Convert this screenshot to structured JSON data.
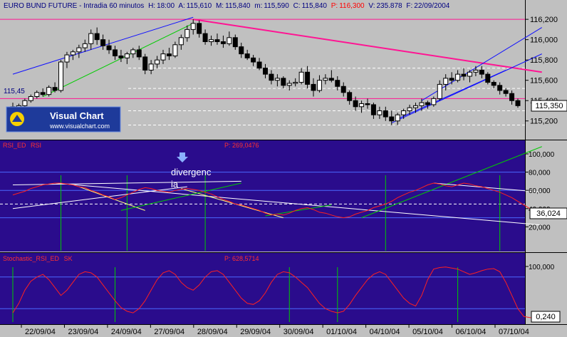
{
  "header": {
    "title": "EURO BUND FUTURE - Intradia 60 minutos",
    "h_label": "H:",
    "h_value": "18:00",
    "a_label": "A:",
    "a_value": "115,610",
    "m_label": "M:",
    "m_value": "115,840",
    "m2_label": "m:",
    "m2_value": "115,590",
    "c_label": "C:",
    "c_value": "115,840",
    "p_label": "P:",
    "p_value": "116,300",
    "v_label": "V:",
    "v_value": "235.878",
    "f_label": "F:",
    "f_value": "22/09/2004"
  },
  "logo": {
    "brand": "Visual Chart",
    "url": "www.visualchart.com"
  },
  "annotations": {
    "divergence_line1": "divergenc",
    "divergence_line2": "ia"
  },
  "colors": {
    "price_bg": "#c0c0c0",
    "indicator_bg": "#2a0c8c",
    "magenta": "#ff1493",
    "trend_blue": "#1010ff",
    "green": "#00cc00",
    "rsi_red": "#ff2020"
  },
  "chart_data": [
    {
      "type": "candlestick",
      "title": "EURO BUND FUTURE - Intradia 60 minutos",
      "ylim": [
        115.1,
        116.25
      ],
      "yticks": [
        "116,200",
        "116,000",
        "115,800",
        "115,600",
        "115,400",
        "115,200"
      ],
      "current_value_label": "115,350",
      "left_label": "115,45",
      "horizontal_levels": [
        116.2,
        115.42
      ],
      "ohlc": [
        [
          115.34,
          115.38,
          115.3,
          115.32
        ],
        [
          115.32,
          115.37,
          115.28,
          115.35
        ],
        [
          115.35,
          115.42,
          115.33,
          115.4
        ],
        [
          115.4,
          115.46,
          115.38,
          115.44
        ],
        [
          115.44,
          115.5,
          115.42,
          115.48
        ],
        [
          115.48,
          115.52,
          115.44,
          115.46
        ],
        [
          115.46,
          115.55,
          115.44,
          115.53
        ],
        [
          115.53,
          115.58,
          115.48,
          115.5
        ],
        [
          115.5,
          115.8,
          115.48,
          115.78
        ],
        [
          115.78,
          115.88,
          115.72,
          115.85
        ],
        [
          115.85,
          115.9,
          115.8,
          115.88
        ],
        [
          115.88,
          115.95,
          115.82,
          115.92
        ],
        [
          115.92,
          116.0,
          115.88,
          115.96
        ],
        [
          115.96,
          116.1,
          115.9,
          116.06
        ],
        [
          116.06,
          116.12,
          115.95,
          116.0
        ],
        [
          116.0,
          116.05,
          115.9,
          115.94
        ],
        [
          115.94,
          116.0,
          115.86,
          115.9
        ],
        [
          115.9,
          115.94,
          115.8,
          115.84
        ],
        [
          115.84,
          115.9,
          115.78,
          115.82
        ],
        [
          115.82,
          115.88,
          115.76,
          115.86
        ],
        [
          115.86,
          115.92,
          115.82,
          115.9
        ],
        [
          115.9,
          115.94,
          115.8,
          115.83
        ],
        [
          115.83,
          115.86,
          115.66,
          115.7
        ],
        [
          115.7,
          115.8,
          115.66,
          115.76
        ],
        [
          115.76,
          115.84,
          115.72,
          115.8
        ],
        [
          115.8,
          115.9,
          115.76,
          115.86
        ],
        [
          115.86,
          115.92,
          115.8,
          115.84
        ],
        [
          115.84,
          115.98,
          115.82,
          115.95
        ],
        [
          115.95,
          116.05,
          115.9,
          116.02
        ],
        [
          116.02,
          116.14,
          115.98,
          116.1
        ],
        [
          116.1,
          116.2,
          116.05,
          116.16
        ],
        [
          116.16,
          116.19,
          116.02,
          116.06
        ],
        [
          116.06,
          116.1,
          115.95,
          115.98
        ],
        [
          115.98,
          116.04,
          115.94,
          116.0
        ],
        [
          116.0,
          116.06,
          115.95,
          115.98
        ],
        [
          115.98,
          116.04,
          115.92,
          115.96
        ],
        [
          115.96,
          116.08,
          115.94,
          116.02
        ],
        [
          116.02,
          116.05,
          115.9,
          115.93
        ],
        [
          115.93,
          115.97,
          115.82,
          115.86
        ],
        [
          115.86,
          115.9,
          115.8,
          115.82
        ],
        [
          115.82,
          115.85,
          115.74,
          115.78
        ],
        [
          115.78,
          115.82,
          115.7,
          115.72
        ],
        [
          115.72,
          115.76,
          115.62,
          115.66
        ],
        [
          115.66,
          115.7,
          115.56,
          115.6
        ],
        [
          115.6,
          115.66,
          115.54,
          115.62
        ],
        [
          115.62,
          115.64,
          115.52,
          115.55
        ],
        [
          115.55,
          115.6,
          115.5,
          115.57
        ],
        [
          115.57,
          115.62,
          115.54,
          115.58
        ],
        [
          115.58,
          115.72,
          115.56,
          115.68
        ],
        [
          115.68,
          115.74,
          115.52,
          115.56
        ],
        [
          115.56,
          115.62,
          115.44,
          115.5
        ],
        [
          115.5,
          115.65,
          115.48,
          115.6
        ],
        [
          115.6,
          115.66,
          115.56,
          115.62
        ],
        [
          115.62,
          115.7,
          115.58,
          115.6
        ],
        [
          115.6,
          115.64,
          115.5,
          115.54
        ],
        [
          115.54,
          115.58,
          115.44,
          115.48
        ],
        [
          115.48,
          115.5,
          115.36,
          115.4
        ],
        [
          115.4,
          115.44,
          115.3,
          115.34
        ],
        [
          115.34,
          115.4,
          115.28,
          115.37
        ],
        [
          115.37,
          115.42,
          115.32,
          115.36
        ],
        [
          115.36,
          115.38,
          115.22,
          115.26
        ],
        [
          115.26,
          115.34,
          115.22,
          115.3
        ],
        [
          115.3,
          115.34,
          115.2,
          115.24
        ],
        [
          115.24,
          115.3,
          115.16,
          115.2
        ],
        [
          115.2,
          115.28,
          115.16,
          115.26
        ],
        [
          115.26,
          115.32,
          115.22,
          115.3
        ],
        [
          115.3,
          115.36,
          115.26,
          115.33
        ],
        [
          115.33,
          115.38,
          115.28,
          115.35
        ],
        [
          115.35,
          115.42,
          115.3,
          115.38
        ],
        [
          115.38,
          115.4,
          115.32,
          115.36
        ],
        [
          115.36,
          115.44,
          115.34,
          115.42
        ],
        [
          115.42,
          115.6,
          115.4,
          115.56
        ],
        [
          115.56,
          115.66,
          115.5,
          115.62
        ],
        [
          115.62,
          115.68,
          115.56,
          115.6
        ],
        [
          115.6,
          115.7,
          115.58,
          115.66
        ],
        [
          115.66,
          115.72,
          115.6,
          115.64
        ],
        [
          115.64,
          115.7,
          115.58,
          115.68
        ],
        [
          115.68,
          115.74,
          115.64,
          115.7
        ],
        [
          115.7,
          115.74,
          115.62,
          115.66
        ],
        [
          115.66,
          115.68,
          115.56,
          115.58
        ],
        [
          115.58,
          115.6,
          115.52,
          115.55
        ],
        [
          115.55,
          115.58,
          115.46,
          115.5
        ],
        [
          115.5,
          115.52,
          115.44,
          115.47
        ],
        [
          115.47,
          115.5,
          115.36,
          115.4
        ],
        [
          115.4,
          115.42,
          115.33,
          115.35
        ]
      ]
    },
    {
      "type": "line",
      "title": "RSI_ED",
      "series_name": "RSI",
      "p_label": "P: 269,0476",
      "ylim": [
        0,
        100
      ],
      "yticks": [
        "100,000",
        "80,000",
        "60,000",
        "40,000",
        "20,000"
      ],
      "current_value_label": "36,024",
      "values": [
        55,
        57,
        59,
        62,
        64,
        66,
        67,
        68,
        68,
        67,
        66,
        64,
        63,
        60,
        58,
        55,
        53,
        50,
        52,
        55,
        58,
        61,
        63,
        62,
        60,
        59,
        58,
        60,
        61,
        62,
        61,
        60,
        58,
        56,
        53,
        50,
        48,
        45,
        44,
        42,
        40,
        38,
        35,
        33,
        34,
        33,
        35,
        38,
        40,
        41,
        39,
        36,
        35,
        33,
        31,
        30,
        31,
        34,
        36,
        38,
        41,
        43,
        45,
        48,
        52,
        55,
        58,
        60,
        63,
        66,
        68,
        67,
        65,
        64,
        66,
        68,
        67,
        65,
        64,
        62,
        60,
        58,
        55,
        52,
        48,
        44,
        40,
        37,
        36
      ]
    },
    {
      "type": "line",
      "title": "Stochastic_RSI_ED",
      "series_name": "SK",
      "p_label": "P: 628,5714",
      "ylim": [
        0,
        100
      ],
      "yticks": [
        "100,000"
      ],
      "current_value_label": "0,240",
      "values": [
        12,
        30,
        55,
        72,
        80,
        85,
        75,
        60,
        45,
        55,
        70,
        85,
        90,
        88,
        80,
        65,
        50,
        35,
        22,
        15,
        12,
        20,
        35,
        55,
        75,
        88,
        92,
        85,
        70,
        60,
        55,
        65,
        80,
        90,
        92,
        85,
        70,
        55,
        40,
        30,
        28,
        35,
        50,
        70,
        85,
        90,
        88,
        80,
        70,
        60,
        45,
        30,
        20,
        15,
        12,
        15,
        28,
        45,
        60,
        75,
        85,
        90,
        85,
        70,
        55,
        40,
        30,
        25,
        45,
        75,
        95,
        98,
        99,
        97,
        95,
        90,
        85,
        88,
        92,
        95,
        96,
        90,
        70,
        45,
        20,
        5,
        3,
        2,
        1
      ]
    }
  ],
  "x_axis_labels": [
    "22/09/04",
    "23/09/04",
    "24/09/04",
    "27/09/04",
    "28/09/04",
    "29/09/04",
    "30/09/04",
    "01/10/04",
    "04/10/04",
    "05/10/04",
    "06/10/04",
    "07/10/04"
  ]
}
